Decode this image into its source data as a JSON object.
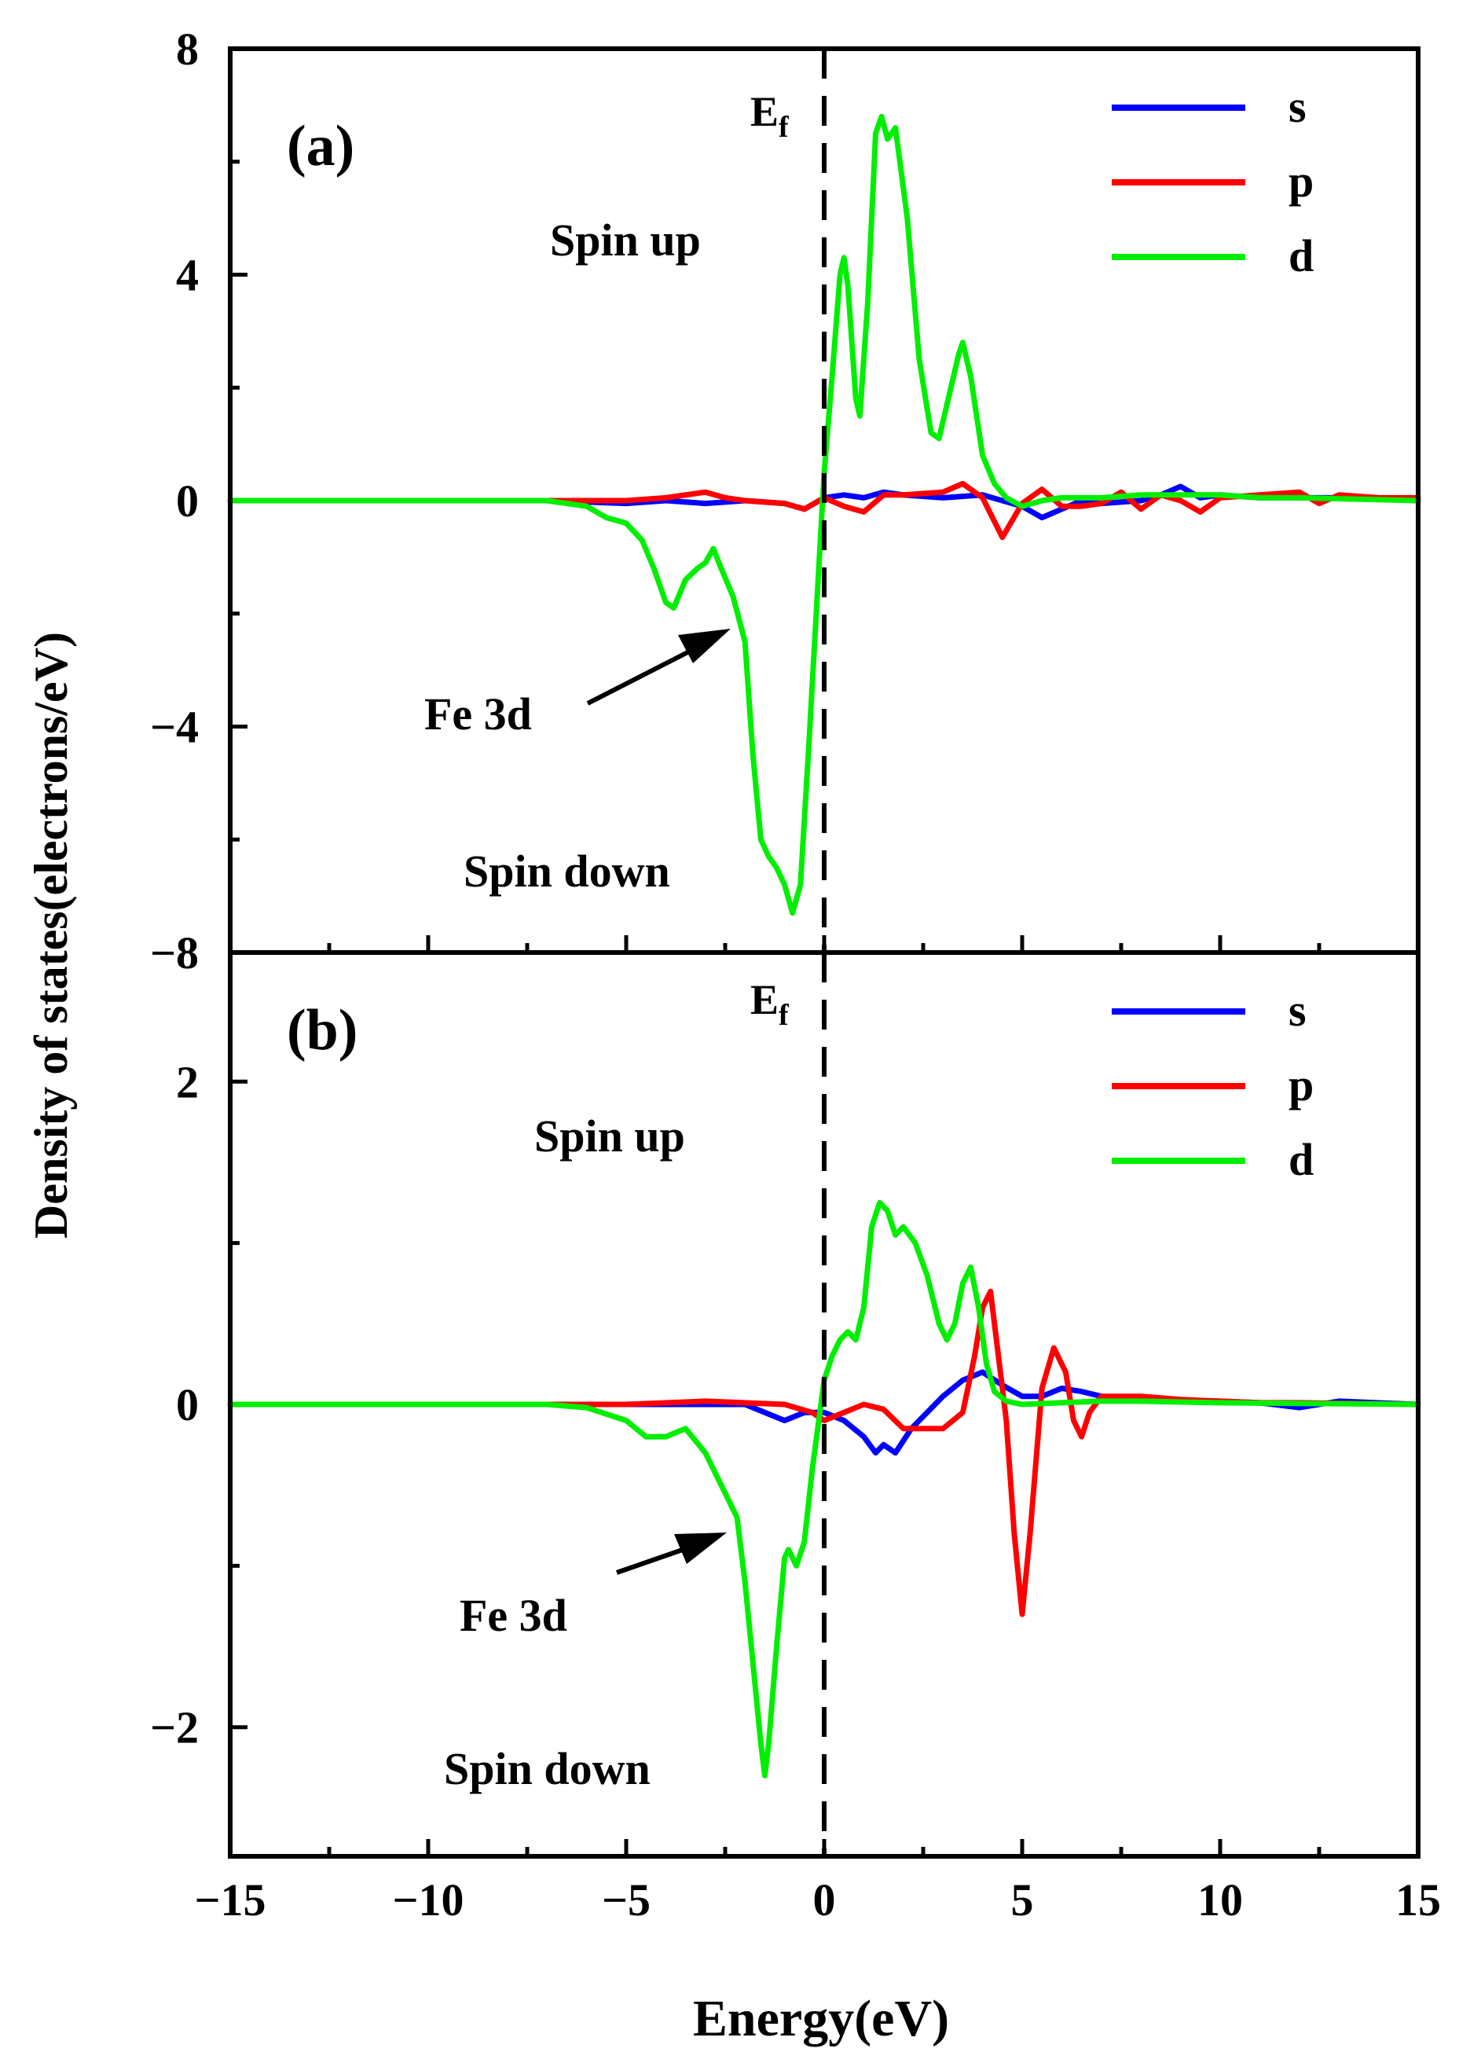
{
  "figure": {
    "ylabel": "Density of states(electrons/eV)",
    "xlabel": "Energy(eV)",
    "fermi_label": "E",
    "fermi_sub": "f"
  },
  "chart_data": [
    {
      "type": "line",
      "panel_label": "(a)",
      "xlim": [
        -15,
        15
      ],
      "ylim": [
        -8,
        8
      ],
      "x_ticks": [
        -15,
        -10,
        -5,
        0,
        5,
        10,
        15
      ],
      "y_ticks": [
        8,
        4,
        0,
        -4,
        -8
      ],
      "y_tick_labels": [
        "8",
        "4",
        "0",
        "−4",
        "−8"
      ],
      "fermi_level": 0,
      "annotations": {
        "spin_up": "Spin up",
        "spin_down": "Spin down",
        "arrow_label": "Fe 3d"
      },
      "series": [
        {
          "name": "s",
          "color": "#0000ff",
          "points": [
            [
              -15,
              0
            ],
            [
              -7,
              0
            ],
            [
              -5,
              -0.05
            ],
            [
              -4,
              0
            ],
            [
              -3,
              -0.05
            ],
            [
              -2,
              0
            ],
            [
              -1,
              -0.05
            ],
            [
              -0.5,
              -0.15
            ],
            [
              0,
              0.05
            ],
            [
              0.5,
              0.1
            ],
            [
              1,
              0.05
            ],
            [
              1.5,
              0.15
            ],
            [
              2,
              0.1
            ],
            [
              3,
              0.05
            ],
            [
              4,
              0.1
            ],
            [
              5,
              -0.1
            ],
            [
              5.5,
              -0.3
            ],
            [
              6,
              -0.15
            ],
            [
              6.5,
              0
            ],
            [
              7,
              -0.05
            ],
            [
              8,
              0
            ],
            [
              8.5,
              0.1
            ],
            [
              9,
              0.25
            ],
            [
              9.5,
              0.05
            ],
            [
              10,
              0.1
            ],
            [
              11,
              0.05
            ],
            [
              12,
              0.05
            ],
            [
              13,
              0.05
            ],
            [
              15,
              0
            ]
          ]
        },
        {
          "name": "p",
          "color": "#ff0000",
          "points": [
            [
              -15,
              0
            ],
            [
              -7,
              0
            ],
            [
              -5,
              0
            ],
            [
              -4,
              0.05
            ],
            [
              -3,
              0.15
            ],
            [
              -2.5,
              0.05
            ],
            [
              -2,
              0
            ],
            [
              -1,
              -0.05
            ],
            [
              -0.5,
              -0.15
            ],
            [
              0,
              0.05
            ],
            [
              0.5,
              -0.1
            ],
            [
              1,
              -0.2
            ],
            [
              1.5,
              0.1
            ],
            [
              2,
              0.1
            ],
            [
              3,
              0.15
            ],
            [
              3.5,
              0.3
            ],
            [
              4,
              0.05
            ],
            [
              4.5,
              -0.65
            ],
            [
              5,
              -0.05
            ],
            [
              5.5,
              0.2
            ],
            [
              6,
              -0.1
            ],
            [
              6.5,
              -0.1
            ],
            [
              7,
              -0.05
            ],
            [
              7.5,
              0.15
            ],
            [
              8,
              -0.15
            ],
            [
              8.5,
              0.1
            ],
            [
              9,
              0
            ],
            [
              9.5,
              -0.2
            ],
            [
              10,
              0.05
            ],
            [
              11,
              0.1
            ],
            [
              12,
              0.15
            ],
            [
              12.5,
              -0.05
            ],
            [
              13,
              0.1
            ],
            [
              14,
              0.05
            ],
            [
              15,
              0.05
            ]
          ]
        },
        {
          "name": "d",
          "color": "#00ee00",
          "points": [
            [
              -15,
              0
            ],
            [
              -12,
              0
            ],
            [
              -7,
              0
            ],
            [
              -6,
              -0.1
            ],
            [
              -5.5,
              -0.3
            ],
            [
              -5,
              -0.4
            ],
            [
              -4.6,
              -0.7
            ],
            [
              -4.3,
              -1.2
            ],
            [
              -4,
              -1.8
            ],
            [
              -3.8,
              -1.9
            ],
            [
              -3.5,
              -1.4
            ],
            [
              -3.2,
              -1.2
            ],
            [
              -3,
              -1.1
            ],
            [
              -2.8,
              -0.85
            ],
            [
              -2.6,
              -1.2
            ],
            [
              -2.3,
              -1.7
            ],
            [
              -2,
              -2.5
            ],
            [
              -1.8,
              -4.5
            ],
            [
              -1.6,
              -6
            ],
            [
              -1.4,
              -6.3
            ],
            [
              -1.2,
              -6.5
            ],
            [
              -1,
              -6.8
            ],
            [
              -0.8,
              -7.3
            ],
            [
              -0.6,
              -6.8
            ],
            [
              -0.4,
              -4.5
            ],
            [
              -0.2,
              -2
            ],
            [
              0,
              0.5
            ],
            [
              0.2,
              2.2
            ],
            [
              0.4,
              4
            ],
            [
              0.5,
              4.3
            ],
            [
              0.6,
              3.8
            ],
            [
              0.8,
              1.8
            ],
            [
              0.9,
              1.5
            ],
            [
              1.1,
              3.5
            ],
            [
              1.3,
              6.5
            ],
            [
              1.45,
              6.8
            ],
            [
              1.6,
              6.4
            ],
            [
              1.8,
              6.6
            ],
            [
              2.1,
              5
            ],
            [
              2.4,
              2.5
            ],
            [
              2.7,
              1.2
            ],
            [
              2.9,
              1.1
            ],
            [
              3.2,
              2
            ],
            [
              3.4,
              2.6
            ],
            [
              3.5,
              2.8
            ],
            [
              3.7,
              2.2
            ],
            [
              4,
              0.8
            ],
            [
              4.3,
              0.3
            ],
            [
              4.6,
              0.05
            ],
            [
              5,
              -0.1
            ],
            [
              5.5,
              0
            ],
            [
              6,
              0.05
            ],
            [
              7,
              0.05
            ],
            [
              8,
              0.1
            ],
            [
              9,
              0.1
            ],
            [
              10,
              0.1
            ],
            [
              11,
              0.05
            ],
            [
              12,
              0.05
            ],
            [
              15,
              0
            ]
          ]
        }
      ]
    },
    {
      "type": "line",
      "panel_label": "(b)",
      "xlim": [
        -15,
        15
      ],
      "ylim": [
        -2.8,
        2.8
      ],
      "x_ticks": [
        -15,
        -10,
        -5,
        0,
        5,
        10,
        15
      ],
      "y_ticks": [
        2,
        0,
        -2
      ],
      "y_tick_labels": [
        "2",
        "0",
        "−2"
      ],
      "y_minor_ticks": [
        1,
        -1
      ],
      "fermi_level": 0,
      "annotations": {
        "spin_up": "Spin up",
        "spin_down": "Spin down",
        "arrow_label": "Fe 3d"
      },
      "series": [
        {
          "name": "s",
          "color": "#0000ff",
          "points": [
            [
              -15,
              0
            ],
            [
              -7,
              0
            ],
            [
              -3,
              0
            ],
            [
              -2,
              0
            ],
            [
              -1.5,
              -0.05
            ],
            [
              -1,
              -0.1
            ],
            [
              -0.5,
              -0.05
            ],
            [
              0,
              -0.05
            ],
            [
              0.5,
              -0.1
            ],
            [
              1,
              -0.2
            ],
            [
              1.3,
              -0.3
            ],
            [
              1.5,
              -0.25
            ],
            [
              1.8,
              -0.3
            ],
            [
              2.2,
              -0.15
            ],
            [
              2.6,
              -0.05
            ],
            [
              3,
              0.05
            ],
            [
              3.5,
              0.15
            ],
            [
              4,
              0.2
            ],
            [
              4.5,
              0.12
            ],
            [
              5,
              0.05
            ],
            [
              5.5,
              0.05
            ],
            [
              6,
              0.1
            ],
            [
              6.5,
              0.08
            ],
            [
              7,
              0.05
            ],
            [
              8,
              0.02
            ],
            [
              9,
              0.02
            ],
            [
              10,
              0.02
            ],
            [
              11,
              0.01
            ],
            [
              12,
              -0.02
            ],
            [
              13,
              0.02
            ],
            [
              15,
              0
            ]
          ]
        },
        {
          "name": "p",
          "color": "#ff0000",
          "points": [
            [
              -15,
              0
            ],
            [
              -7,
              0
            ],
            [
              -5,
              0
            ],
            [
              -3,
              0.02
            ],
            [
              -1,
              0
            ],
            [
              -0.3,
              -0.05
            ],
            [
              0,
              -0.1
            ],
            [
              0.5,
              -0.05
            ],
            [
              1,
              0
            ],
            [
              1.5,
              -0.03
            ],
            [
              2,
              -0.15
            ],
            [
              3,
              -0.15
            ],
            [
              3.5,
              -0.05
            ],
            [
              3.8,
              0.3
            ],
            [
              4,
              0.6
            ],
            [
              4.2,
              0.7
            ],
            [
              4.4,
              0.3
            ],
            [
              4.6,
              -0.1
            ],
            [
              4.8,
              -0.8
            ],
            [
              5,
              -1.3
            ],
            [
              5.2,
              -0.8
            ],
            [
              5.5,
              0.1
            ],
            [
              5.8,
              0.35
            ],
            [
              6.1,
              0.2
            ],
            [
              6.3,
              -0.1
            ],
            [
              6.5,
              -0.2
            ],
            [
              6.7,
              -0.05
            ],
            [
              7,
              0.05
            ],
            [
              7.5,
              0.05
            ],
            [
              8,
              0.05
            ],
            [
              9,
              0.03
            ],
            [
              10,
              0.02
            ],
            [
              11,
              0.01
            ],
            [
              12,
              0.01
            ],
            [
              15,
              0
            ]
          ]
        },
        {
          "name": "d",
          "color": "#00ee00",
          "points": [
            [
              -15,
              0
            ],
            [
              -12,
              0
            ],
            [
              -7,
              0
            ],
            [
              -6,
              -0.02
            ],
            [
              -5,
              -0.1
            ],
            [
              -4.5,
              -0.2
            ],
            [
              -4,
              -0.2
            ],
            [
              -3.5,
              -0.15
            ],
            [
              -3,
              -0.3
            ],
            [
              -2.5,
              -0.55
            ],
            [
              -2.2,
              -0.7
            ],
            [
              -2,
              -1.1
            ],
            [
              -1.8,
              -1.6
            ],
            [
              -1.6,
              -2.1
            ],
            [
              -1.5,
              -2.3
            ],
            [
              -1.4,
              -2.1
            ],
            [
              -1.2,
              -1.5
            ],
            [
              -1,
              -0.95
            ],
            [
              -0.9,
              -0.9
            ],
            [
              -0.7,
              -1
            ],
            [
              -0.5,
              -0.85
            ],
            [
              -0.3,
              -0.4
            ],
            [
              0,
              0.15
            ],
            [
              0.2,
              0.3
            ],
            [
              0.4,
              0.4
            ],
            [
              0.6,
              0.45
            ],
            [
              0.8,
              0.4
            ],
            [
              1,
              0.6
            ],
            [
              1.2,
              1.1
            ],
            [
              1.4,
              1.25
            ],
            [
              1.6,
              1.2
            ],
            [
              1.8,
              1.05
            ],
            [
              2,
              1.1
            ],
            [
              2.3,
              1
            ],
            [
              2.6,
              0.8
            ],
            [
              2.9,
              0.5
            ],
            [
              3.1,
              0.4
            ],
            [
              3.3,
              0.5
            ],
            [
              3.5,
              0.75
            ],
            [
              3.7,
              0.85
            ],
            [
              3.9,
              0.6
            ],
            [
              4.1,
              0.25
            ],
            [
              4.3,
              0.08
            ],
            [
              4.6,
              0.02
            ],
            [
              5,
              0
            ],
            [
              6,
              0.01
            ],
            [
              7,
              0.02
            ],
            [
              8,
              0.02
            ],
            [
              10,
              0.01
            ],
            [
              15,
              0
            ]
          ]
        }
      ]
    }
  ]
}
